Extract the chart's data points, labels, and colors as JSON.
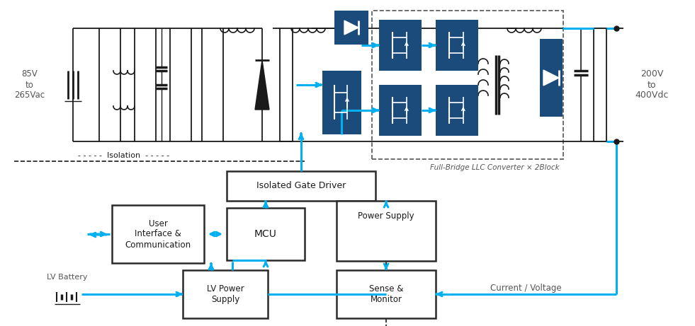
{
  "fig_width": 9.81,
  "fig_height": 4.61,
  "bg_color": "#ffffff",
  "dark_blue": "#1a4b7a",
  "light_blue": "#00b0f0",
  "black": "#1a1a1a",
  "gray": "#555555",
  "box_edge": "#2a2a2a",
  "labels": {
    "input_voltage": "85V\nto\n265Vac",
    "output_voltage": "200V\nto\n400Vdc",
    "isolation": "Isolation",
    "gate_driver": "Isolated Gate Driver",
    "ui_comm": "User\nInterface &\nCommunication",
    "mcu": "MCU",
    "power_supply": "Power Supply",
    "sense_monitor": "Sense &\nMonitor",
    "lv_power": "LV Power\nSupply",
    "lv_battery": "LV Battery",
    "current_voltage": "Current / Voltage",
    "llc_label": "Full-Bridge LLC Converter × 2Block"
  }
}
